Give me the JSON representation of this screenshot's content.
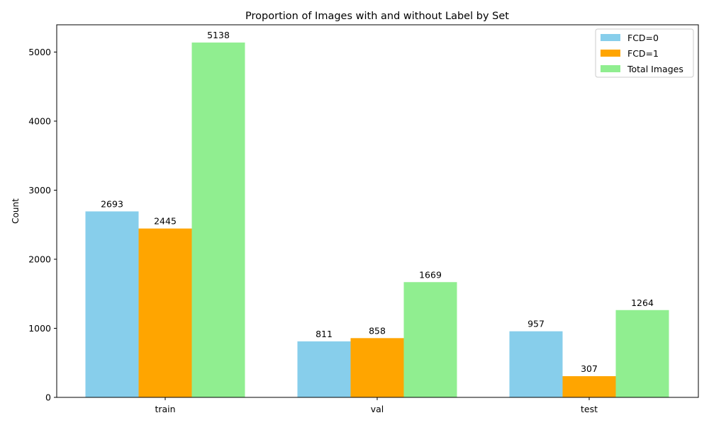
{
  "chart_data": {
    "type": "bar",
    "title": "Proportion of Images with and without Label by Set",
    "xlabel": "",
    "ylabel": "Count",
    "categories": [
      "train",
      "val",
      "test"
    ],
    "series": [
      {
        "name": "FCD=0",
        "values": [
          2693,
          811,
          957
        ],
        "color": "#87ceeb"
      },
      {
        "name": "FCD=1",
        "values": [
          2445,
          858,
          307
        ],
        "color": "#ffa500"
      },
      {
        "name": "Total Images",
        "values": [
          5138,
          1669,
          1264
        ],
        "color": "#90ee90"
      }
    ],
    "ylim": [
      0,
      5395
    ],
    "yticks": [
      0,
      1000,
      2000,
      3000,
      4000,
      5000
    ],
    "legend_position": "top-right",
    "grid": false
  }
}
